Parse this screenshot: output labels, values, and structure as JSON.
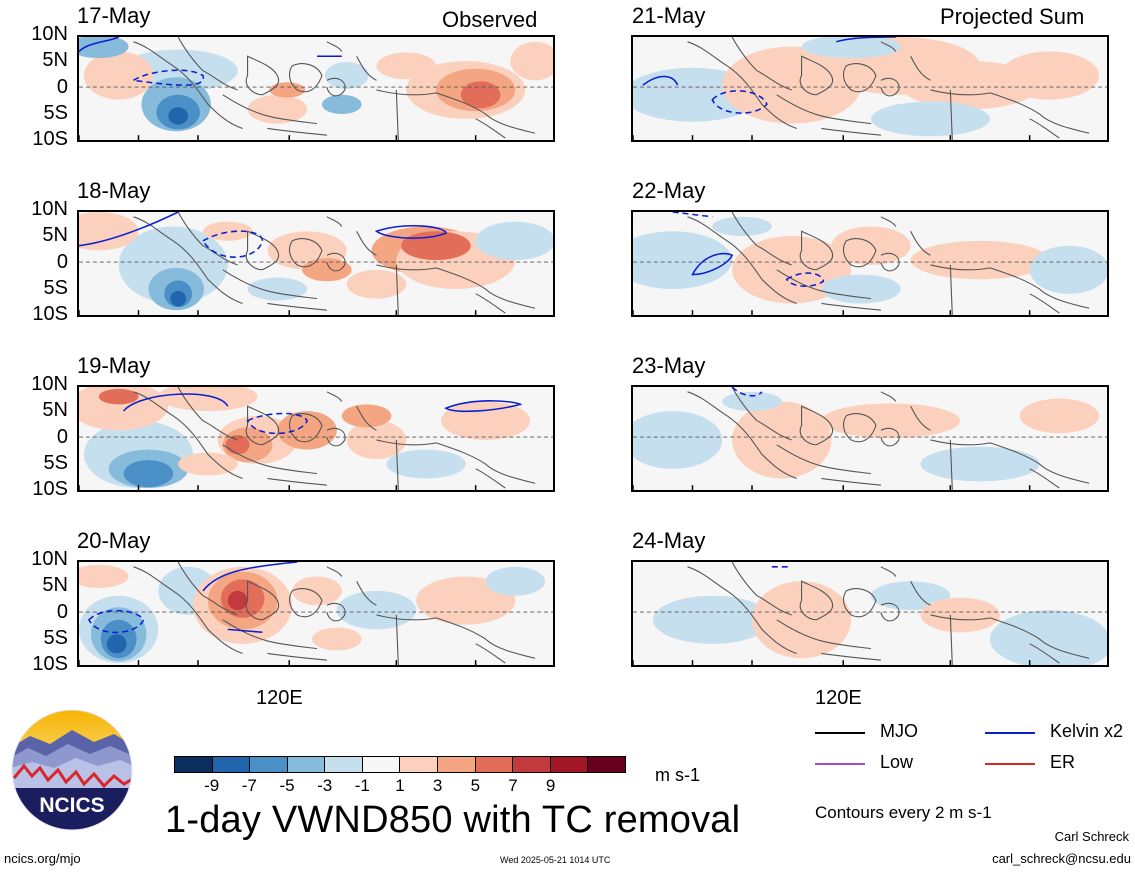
{
  "columns": {
    "observed_header": "Observed",
    "projected_header": "Projected Sum"
  },
  "observed_panels": [
    {
      "date": "17-May",
      "pattern": 0
    },
    {
      "date": "18-May",
      "pattern": 1
    },
    {
      "date": "19-May",
      "pattern": 2
    },
    {
      "date": "20-May",
      "pattern": 3
    }
  ],
  "projected_panels": [
    {
      "date": "21-May",
      "pattern": 4
    },
    {
      "date": "22-May",
      "pattern": 5
    },
    {
      "date": "23-May",
      "pattern": 6
    },
    {
      "date": "24-May",
      "pattern": 7
    }
  ],
  "lat_labels": [
    "10N",
    "5N",
    "0",
    "5S",
    "10S"
  ],
  "x_tick_label": "120E",
  "colorbar": {
    "colors": [
      "#0b2e5c",
      "#2166ac",
      "#4a90c7",
      "#86bbdc",
      "#c6dfef",
      "#f7f7f7",
      "#fbd1bd",
      "#f4a582",
      "#e26e59",
      "#c33a3e",
      "#a31626",
      "#67001f"
    ],
    "ticks": [
      "-9",
      "-7",
      "-5",
      "-3",
      "-1",
      "1",
      "3",
      "5",
      "7",
      "9"
    ],
    "units": "m s-1"
  },
  "title": "1-day VWND850 with TC removal",
  "legend": {
    "items": [
      {
        "label": "MJO",
        "color": "#000000"
      },
      {
        "label": "Kelvin x2",
        "color": "#0b1fd1"
      },
      {
        "label": "Low",
        "color": "#a24bd6"
      },
      {
        "label": "ER",
        "color": "#d62a20"
      }
    ],
    "contours_note": "Contours every 2 m s-1"
  },
  "logo": {
    "text": "NCICS"
  },
  "footer": {
    "url": "ncics.org/mjo",
    "timestamp": "Wed 2025-05-21 1014 UTC",
    "author": "Carl Schreck",
    "email": "carl_schreck@ncsu.edu"
  }
}
